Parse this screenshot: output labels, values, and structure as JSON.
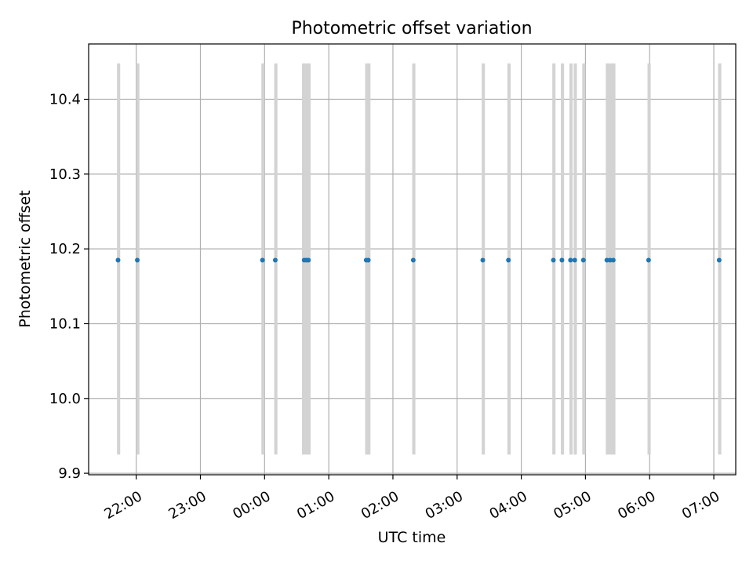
{
  "chart_data": {
    "type": "scatter",
    "title": "Photometric offset variation",
    "xlabel": "UTC time",
    "ylabel": "Photometric offset",
    "x_axis_kind": "time",
    "x_ticks": [
      "22:00",
      "23:00",
      "00:00",
      "01:00",
      "02:00",
      "03:00",
      "04:00",
      "05:00",
      "06:00",
      "07:00"
    ],
    "x_tick_values": [
      0,
      60,
      120,
      180,
      240,
      300,
      360,
      420,
      480,
      540
    ],
    "xlim": [
      -44.5,
      560.5
    ],
    "y_ticks": [
      "9.9",
      "10.0",
      "10.1",
      "10.2",
      "10.3",
      "10.4"
    ],
    "y_tick_values": [
      9.9,
      10.0,
      10.1,
      10.2,
      10.3,
      10.4
    ],
    "ylim": [
      9.898,
      10.474
    ],
    "grid": true,
    "marker_color": "#1f77b4",
    "band_color": "#d3d3d3",
    "band_range": [
      9.925,
      10.448
    ],
    "points": [
      {
        "t": "21:43",
        "offset": 10.185
      },
      {
        "t": "22:01",
        "offset": 10.185
      },
      {
        "t": "23:58",
        "offset": 10.185
      },
      {
        "t": "00:10",
        "offset": 10.185
      },
      {
        "t": "00:37",
        "offset": 10.185
      },
      {
        "t": "00:39",
        "offset": 10.185
      },
      {
        "t": "00:41",
        "offset": 10.185
      },
      {
        "t": "01:35",
        "offset": 10.185
      },
      {
        "t": "01:37",
        "offset": 10.185
      },
      {
        "t": "02:19",
        "offset": 10.185
      },
      {
        "t": "03:24",
        "offset": 10.185
      },
      {
        "t": "03:48",
        "offset": 10.185
      },
      {
        "t": "04:30",
        "offset": 10.185
      },
      {
        "t": "04:38",
        "offset": 10.185
      },
      {
        "t": "04:46",
        "offset": 10.185
      },
      {
        "t": "04:50",
        "offset": 10.185
      },
      {
        "t": "04:58",
        "offset": 10.185
      },
      {
        "t": "05:20",
        "offset": 10.185
      },
      {
        "t": "05:23",
        "offset": 10.185
      },
      {
        "t": "05:26",
        "offset": 10.185
      },
      {
        "t": "05:59",
        "offset": 10.185
      },
      {
        "t": "07:05",
        "offset": 10.185
      }
    ],
    "bands": [
      {
        "start": "21:42",
        "end": "21:45"
      },
      {
        "start": "22:00",
        "end": "22:03"
      },
      {
        "start": "23:57",
        "end": "00:00"
      },
      {
        "start": "00:09",
        "end": "00:12"
      },
      {
        "start": "00:35",
        "end": "00:43"
      },
      {
        "start": "01:34",
        "end": "01:39"
      },
      {
        "start": "02:18",
        "end": "02:21"
      },
      {
        "start": "03:23",
        "end": "03:26"
      },
      {
        "start": "03:47",
        "end": "03:50"
      },
      {
        "start": "04:29",
        "end": "04:32"
      },
      {
        "start": "04:37",
        "end": "04:40"
      },
      {
        "start": "04:45",
        "end": "04:48"
      },
      {
        "start": "04:49",
        "end": "04:52"
      },
      {
        "start": "04:57",
        "end": "05:00"
      },
      {
        "start": "05:19",
        "end": "05:28"
      },
      {
        "start": "05:58",
        "end": "06:01"
      },
      {
        "start": "07:04",
        "end": "07:07"
      }
    ]
  }
}
